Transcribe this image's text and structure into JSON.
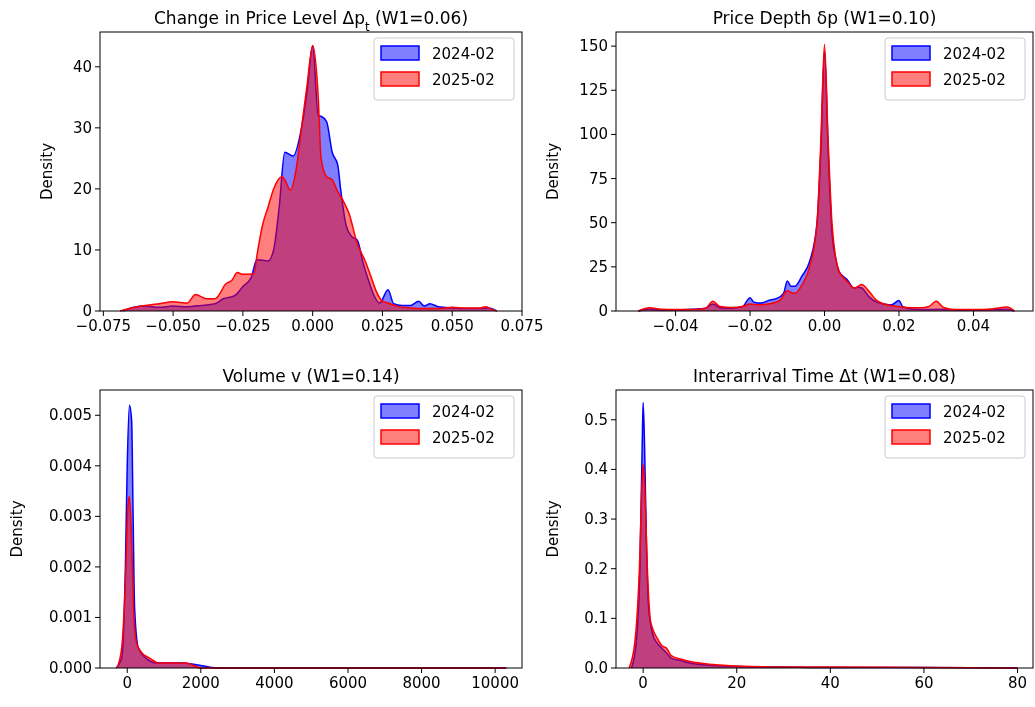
{
  "chart_data": [
    {
      "type": "area",
      "title": "Change in Price Level Δp$_{t}$ (W1=0.06)",
      "ylabel": "Density",
      "legend": "top right",
      "grid": false,
      "xlim": [
        -0.0762,
        0.075
      ],
      "ylim": [
        0,
        45.7
      ],
      "xticks": [
        {
          "value": -0.075,
          "label": "−0.075"
        },
        {
          "value": -0.05,
          "label": "−0.050"
        },
        {
          "value": -0.025,
          "label": "−0.025"
        },
        {
          "value": 0,
          "label": "0.000"
        },
        {
          "value": 0.025,
          "label": "0.025"
        },
        {
          "value": 0.05,
          "label": "0.050"
        },
        {
          "value": 0.075,
          "label": "0.075"
        }
      ],
      "yticks": [
        0,
        10,
        20,
        30,
        40
      ],
      "series": [
        {
          "name": "2024-02",
          "color": "#0000ff",
          "x": [
            -0.068,
            -0.064,
            -0.06,
            -0.055,
            -0.05,
            -0.045,
            -0.04,
            -0.035,
            -0.032,
            -0.028,
            -0.025,
            -0.022,
            -0.02,
            -0.018,
            -0.016,
            -0.014,
            -0.012,
            -0.01,
            -0.007,
            -0.004,
            -0.002,
            0,
            0.002,
            0.003,
            0.005,
            0.007,
            0.009,
            0.01,
            0.012,
            0.014,
            0.016,
            0.018,
            0.02,
            0.022,
            0.024,
            0.027,
            0.029,
            0.032,
            0.035,
            0.038,
            0.04,
            0.042,
            0.045,
            0.05,
            0.055,
            0.06,
            0.063,
            0.066
          ],
          "values": [
            0,
            0.6,
            0.8,
            0.6,
            0.8,
            0.7,
            0.9,
            1.2,
            2,
            2.5,
            4,
            5.5,
            8.4,
            8.3,
            8.2,
            10,
            17,
            26,
            25.4,
            30,
            36,
            43.4,
            32,
            31.9,
            31,
            26,
            23.9,
            20,
            14,
            12.2,
            11.6,
            8,
            5,
            2.5,
            1.3,
            3.5,
            1.2,
            0.9,
            0.9,
            1.6,
            0.8,
            1.2,
            0.7,
            0.5,
            0.4,
            0.4,
            0.5,
            0
          ]
        },
        {
          "name": "2025-02",
          "color": "#ff0000",
          "x": [
            -0.069,
            -0.065,
            -0.06,
            -0.055,
            -0.05,
            -0.045,
            -0.042,
            -0.038,
            -0.035,
            -0.031,
            -0.029,
            -0.027,
            -0.025,
            -0.021,
            -0.02,
            -0.018,
            -0.016,
            -0.014,
            -0.011,
            -0.01,
            -0.008,
            -0.006,
            -0.004,
            -0.002,
            0,
            0.002,
            0.003,
            0.005,
            0.007,
            0.009,
            0.011,
            0.013,
            0.016,
            0.019,
            0.021,
            0.023,
            0.025,
            0.027,
            0.03,
            0.035,
            0.04,
            0.045,
            0.05,
            0.055,
            0.06,
            0.062,
            0.064,
            0.066
          ],
          "values": [
            0,
            0.5,
            0.9,
            1.2,
            1.5,
            1.3,
            2.7,
            2,
            2,
            4.5,
            5,
            6.3,
            6,
            6.1,
            9,
            14,
            17,
            20,
            22,
            21.5,
            19.8,
            23,
            30,
            37,
            43.5,
            35,
            25,
            22,
            21.5,
            19.5,
            18,
            16,
            11,
            8,
            5.5,
            3,
            1.6,
            1.3,
            0.8,
            0.5,
            0.4,
            0.4,
            0.6,
            0.5,
            0.5,
            0.7,
            0.3,
            0
          ]
        }
      ]
    },
    {
      "type": "area",
      "title": "Price Depth δp (W1=0.10)",
      "ylabel": "Density",
      "legend": "top right",
      "grid": false,
      "xlim": [
        -0.056,
        0.056
      ],
      "ylim": [
        0,
        158
      ],
      "xticks": [
        {
          "value": -0.04,
          "label": "−0.04"
        },
        {
          "value": -0.02,
          "label": "−0.02"
        },
        {
          "value": 0,
          "label": "0.00"
        },
        {
          "value": 0.02,
          "label": "0.02"
        },
        {
          "value": 0.04,
          "label": "0.04"
        }
      ],
      "yticks": [
        0,
        25,
        50,
        75,
        100,
        125,
        150
      ],
      "series": [
        {
          "name": "2024-02",
          "color": "#0000ff",
          "x": [
            -0.05,
            -0.047,
            -0.044,
            -0.04,
            -0.035,
            -0.032,
            -0.03,
            -0.028,
            -0.025,
            -0.022,
            -0.02,
            -0.019,
            -0.017,
            -0.015,
            -0.013,
            -0.011,
            -0.01,
            -0.009,
            -0.008,
            -0.006,
            -0.004,
            -0.002,
            -0.001,
            0,
            0.001,
            0.002,
            0.003,
            0.004,
            0.006,
            0.008,
            0.009,
            0.01,
            0.012,
            0.014,
            0.016,
            0.018,
            0.02,
            0.021,
            0.024,
            0.028,
            0.03,
            0.035,
            0.04,
            0.045,
            0.049,
            0.051
          ],
          "values": [
            0,
            1.2,
            0.6,
            0.5,
            1,
            1.5,
            4,
            1.8,
            1.5,
            2.5,
            7.5,
            5,
            4.5,
            6,
            7,
            10,
            17,
            14,
            14,
            20,
            28,
            50,
            90,
            147,
            90,
            45,
            30,
            22,
            18,
            13,
            13.5,
            13,
            8,
            5,
            4,
            3.5,
            6,
            2.5,
            1,
            0.8,
            1,
            0.6,
            0.6,
            0.8,
            1,
            0
          ]
        },
        {
          "name": "2025-02",
          "color": "#ff0000",
          "x": [
            -0.05,
            -0.047,
            -0.044,
            -0.04,
            -0.035,
            -0.032,
            -0.03,
            -0.028,
            -0.025,
            -0.022,
            -0.02,
            -0.018,
            -0.015,
            -0.012,
            -0.01,
            -0.009,
            -0.008,
            -0.006,
            -0.004,
            -0.002,
            -0.001,
            0,
            0.001,
            0.002,
            0.003,
            0.004,
            0.006,
            0.008,
            0.01,
            0.012,
            0.014,
            0.016,
            0.018,
            0.02,
            0.022,
            0.026,
            0.028,
            0.03,
            0.032,
            0.035,
            0.04,
            0.045,
            0.049,
            0.051
          ],
          "values": [
            0,
            1.8,
            1,
            0.8,
            0.8,
            1.5,
            5.5,
            2.5,
            2,
            2.5,
            4,
            3.5,
            4,
            6,
            11.5,
            10.5,
            10,
            15,
            25,
            50,
            95,
            151,
            95,
            50,
            30,
            22,
            17,
            13,
            15,
            11,
            6,
            4,
            3,
            2.5,
            2,
            1.8,
            2.5,
            5.5,
            2,
            0.8,
            0.8,
            1.2,
            2.2,
            0
          ]
        }
      ]
    },
    {
      "type": "area",
      "title": "Volume v (W1=0.14)",
      "ylabel": "Density",
      "legend": "top right",
      "grid": false,
      "xlim": [
        -740,
        10730
      ],
      "ylim": [
        0,
        0.0055
      ],
      "xticks": [
        0,
        2000,
        4000,
        6000,
        8000,
        10000
      ],
      "yticks": [
        {
          "value": 0,
          "label": "0.000"
        },
        {
          "value": 0.001,
          "label": "0.001"
        },
        {
          "value": 0.002,
          "label": "0.002"
        },
        {
          "value": 0.003,
          "label": "0.003"
        },
        {
          "value": 0.004,
          "label": "0.004"
        },
        {
          "value": 0.005,
          "label": "0.005"
        }
      ],
      "series": [
        {
          "name": "2024-02",
          "color": "#0000ff",
          "x": [
            -300,
            -150,
            -50,
            0,
            60,
            120,
            160,
            200,
            300,
            500,
            800,
            1500,
            2500,
            4000,
            6000,
            10300
          ],
          "values": [
            0,
            0.0002,
            0.002,
            0.004,
            0.0052,
            0.0049,
            0.003,
            0.0012,
            0.0004,
            0.0002,
            0.0001,
            0.0001,
            0,
            0,
            0,
            0
          ]
        },
        {
          "name": "2025-02",
          "color": "#ff0000",
          "x": [
            -280,
            -150,
            -50,
            20,
            60,
            120,
            170,
            250,
            400,
            600,
            850,
            1000,
            1400,
            1600,
            2000,
            2500,
            4000,
            6000,
            8000,
            10300
          ],
          "values": [
            0,
            0.0004,
            0.0017,
            0.0032,
            0.0034,
            0.0025,
            0.0012,
            0.0005,
            0.0003,
            0.0002,
            0.0001,
            0.0001,
            0.0001,
            0.0001,
            0,
            0,
            0,
            0,
            0,
            0
          ]
        }
      ]
    },
    {
      "type": "area",
      "title": "Interarrival Time Δt (W1=0.08)",
      "ylabel": "Density",
      "legend": "top right",
      "grid": false,
      "xlim": [
        -5.8,
        83.3
      ],
      "ylim": [
        0,
        0.56
      ],
      "xticks": [
        0,
        20,
        40,
        60,
        80
      ],
      "yticks": [
        {
          "value": 0,
          "label": "0.0"
        },
        {
          "value": 0.1,
          "label": "0.1"
        },
        {
          "value": 0.2,
          "label": "0.2"
        },
        {
          "value": 0.3,
          "label": "0.3"
        },
        {
          "value": 0.4,
          "label": "0.4"
        },
        {
          "value": 0.5,
          "label": "0.5"
        }
      ],
      "series": [
        {
          "name": "2024-02",
          "color": "#0000ff",
          "x": [
            -2.5,
            -1.5,
            -0.7,
            -0.2,
            0,
            0.3,
            0.7,
            1.2,
            2,
            3,
            4,
            5,
            6,
            8,
            10,
            15,
            20,
            30,
            40,
            60,
            80
          ],
          "values": [
            0,
            0.05,
            0.2,
            0.45,
            0.535,
            0.45,
            0.25,
            0.12,
            0.07,
            0.05,
            0.04,
            0.03,
            0.02,
            0.015,
            0.01,
            0.005,
            0.003,
            0.002,
            0.001,
            0.001,
            0
          ]
        },
        {
          "name": "2025-02",
          "color": "#ff0000",
          "x": [
            -3,
            -1.8,
            -0.8,
            -0.2,
            0,
            0.4,
            0.9,
            1.5,
            2,
            3,
            4,
            5,
            6,
            8,
            10,
            15,
            20,
            30,
            40,
            60,
            80
          ],
          "values": [
            0,
            0.05,
            0.2,
            0.38,
            0.41,
            0.35,
            0.2,
            0.1,
            0.08,
            0.06,
            0.045,
            0.04,
            0.025,
            0.018,
            0.013,
            0.007,
            0.004,
            0.002,
            0.002,
            0.001,
            0
          ]
        }
      ]
    }
  ]
}
